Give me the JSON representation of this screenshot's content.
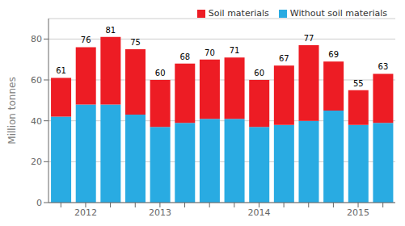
{
  "chart_data": {
    "type": "bar",
    "stacked": true,
    "categories": [
      null,
      "2012",
      null,
      null,
      "2013",
      null,
      null,
      null,
      "2014",
      null,
      null,
      null,
      "2015",
      null
    ],
    "series": [
      {
        "name": "Without soil materials",
        "color": "#29ABE2",
        "values": [
          42,
          48,
          48,
          43,
          37,
          39,
          41,
          41,
          37,
          38,
          40,
          45,
          38,
          39
        ]
      },
      {
        "name": "Soil materials",
        "color": "#ED1C24",
        "values": [
          19,
          28,
          33,
          32,
          23,
          29,
          29,
          30,
          23,
          29,
          37,
          24,
          17,
          24
        ]
      }
    ],
    "totals": [
      61,
      76,
      81,
      75,
      60,
      68,
      70,
      71,
      60,
      67,
      77,
      69,
      55,
      63
    ],
    "ylabel": "Million tonnes",
    "ylim": [
      0,
      90
    ],
    "yticks": [
      0,
      20,
      40,
      60,
      80
    ],
    "grid": true,
    "legend": "upper right"
  }
}
